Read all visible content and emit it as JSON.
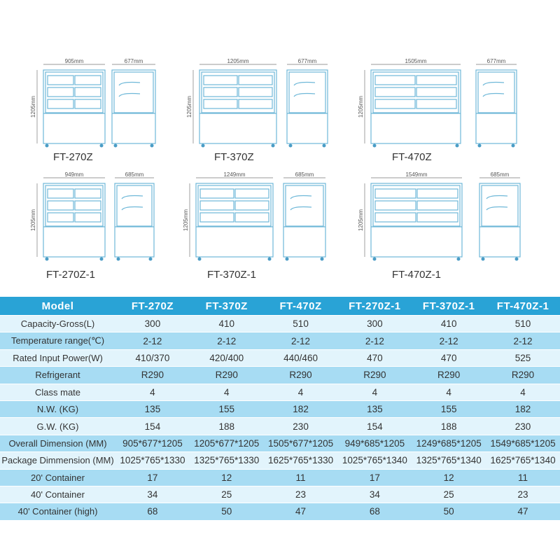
{
  "drawings": [
    {
      "model": "FT-270Z",
      "width_label": "905mm",
      "depth_label": "677mm",
      "height_label": "1205mm"
    },
    {
      "model": "FT-370Z",
      "width_label": "1205mm",
      "depth_label": "677mm",
      "height_label": "1205mm"
    },
    {
      "model": "FT-470Z",
      "width_label": "1505mm",
      "depth_label": "677mm",
      "height_label": "1205mm"
    },
    {
      "model": "FT-270Z-1",
      "width_label": "949mm",
      "depth_label": "685mm",
      "height_label": "1205mm"
    },
    {
      "model": "FT-370Z-1",
      "width_label": "1249mm",
      "depth_label": "685mm",
      "height_label": "1205mm"
    },
    {
      "model": "FT-470Z-1",
      "width_label": "1549mm",
      "depth_label": "685mm",
      "height_label": "1205mm"
    }
  ],
  "table": {
    "headers": [
      "Model",
      "FT-270Z",
      "FT-370Z",
      "FT-470Z",
      "FT-270Z-1",
      "FT-370Z-1",
      "FT-470Z-1"
    ],
    "rows": [
      [
        "Capacity-Gross(L)",
        "300",
        "410",
        "510",
        "300",
        "410",
        "510"
      ],
      [
        "Temperature range(℃)",
        "2-12",
        "2-12",
        "2-12",
        "2-12",
        "2-12",
        "2-12"
      ],
      [
        "Rated Input Power(W)",
        "410/370",
        "420/400",
        "440/460",
        "470",
        "470",
        "525"
      ],
      [
        "Refrigerant",
        "R290",
        "R290",
        "R290",
        "R290",
        "R290",
        "R290"
      ],
      [
        "Class mate",
        "4",
        "4",
        "4",
        "4",
        "4",
        "4"
      ],
      [
        "N.W. (KG)",
        "135",
        "155",
        "182",
        "135",
        "155",
        "182"
      ],
      [
        "G.W. (KG)",
        "154",
        "188",
        "230",
        "154",
        "188",
        "230"
      ],
      [
        "Overall Dimension (MM)",
        "905*677*1205",
        "1205*677*1205",
        "1505*677*1205",
        "949*685*1205",
        "1249*685*1205",
        "1549*685*1205"
      ],
      [
        "Package Dimmension (MM)",
        "1025*765*1330",
        "1325*765*1330",
        "1625*765*1330",
        "1025*765*1340",
        "1325*765*1340",
        "1625*765*1340"
      ],
      [
        "20' Container",
        "17",
        "12",
        "11",
        "17",
        "12",
        "11"
      ],
      [
        "40' Container",
        "34",
        "25",
        "23",
        "34",
        "25",
        "23"
      ],
      [
        "40' Container (high)",
        "68",
        "50",
        "47",
        "68",
        "50",
        "47"
      ]
    ]
  },
  "colors": {
    "header_bg": "#29a3d6",
    "row_light": "#e2f4fc",
    "row_dark": "#a7dcf3",
    "drawing_stroke": "#6fb8d8"
  }
}
